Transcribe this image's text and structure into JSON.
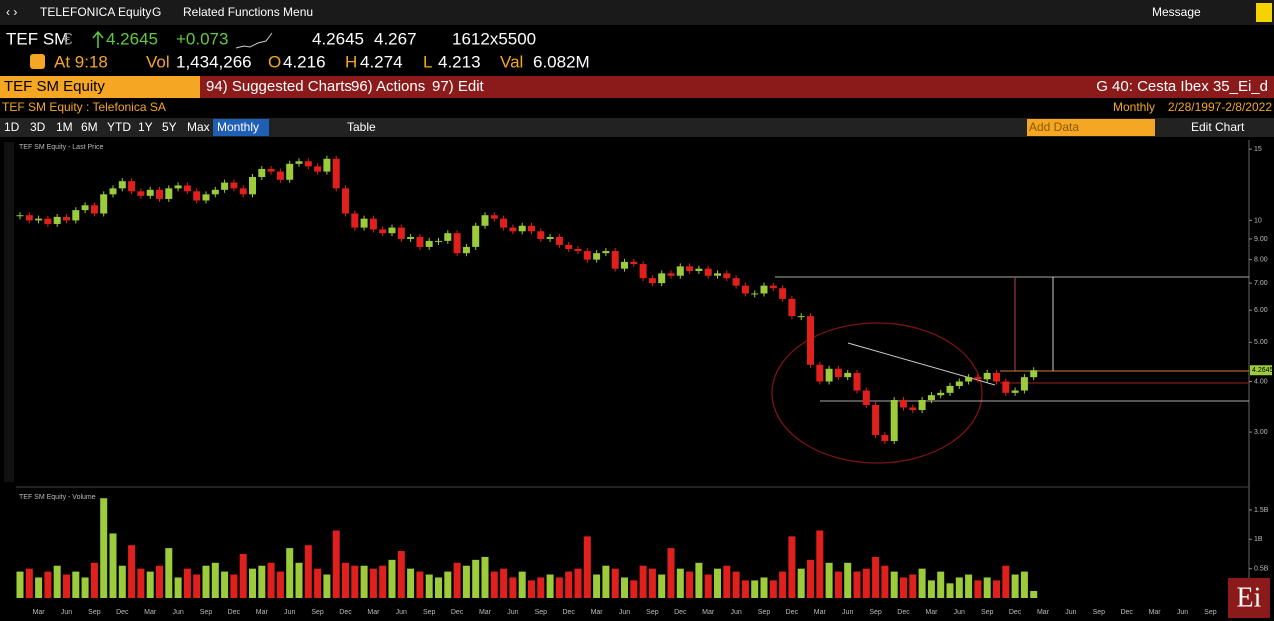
{
  "toolbar": {
    "security": "TELEFONICA Equity",
    "g": "G",
    "related": "Related Functions Menu",
    "message": "Message"
  },
  "quote": {
    "ticker": "TEF SM",
    "currency": "€",
    "last": "4.2645",
    "change": "+0.073",
    "bid": "4.2645",
    "ask": "4.267",
    "size": "1612x5500",
    "time": "At 9:18",
    "vol_label": "Vol",
    "vol": "1,434,266",
    "o_label": "O",
    "open": "4.216",
    "h_label": "H",
    "high": "4.274",
    "l_label": "L",
    "low": "4.213",
    "val_label": "Val",
    "val": "6.082M"
  },
  "menu": {
    "security": "TEF SM Equity",
    "suggested": "94) Suggested Charts",
    "actions": "96) Actions",
    "edit": "97) Edit",
    "launchpad": "G 40: Cesta Ibex 35_Ei_d"
  },
  "subheader": {
    "title": "TEF SM Equity : Telefonica SA",
    "period": "Monthly",
    "range": "2/28/1997-2/8/2022"
  },
  "controls": {
    "ranges": [
      "1D",
      "3D",
      "1M",
      "6M",
      "YTD",
      "1Y",
      "5Y",
      "Max"
    ],
    "frequency": "Monthly",
    "table": "Table",
    "add_data": "Add Data",
    "edit_chart": "Edit Chart"
  },
  "logo": "Ei",
  "chart_data": {
    "type": "candlestick",
    "log_scale": true,
    "last_label": "4.2645",
    "categories": [
      null,
      null,
      "Mar",
      null,
      null,
      "Jun",
      null,
      null,
      "Sep",
      null,
      null,
      "Dec",
      null,
      null,
      "Mar",
      null,
      null,
      "Jun",
      null,
      null,
      "Sep",
      null,
      null,
      "Dec",
      null,
      null,
      "Mar",
      null,
      null,
      "Jun",
      null,
      null,
      "Sep",
      null,
      null,
      "Dec",
      null,
      null,
      "Mar",
      null,
      null,
      "Jun",
      null,
      null,
      "Sep",
      null,
      null,
      "Dec",
      null,
      null,
      "Mar",
      null,
      null,
      "Jun",
      null,
      null,
      "Sep",
      null,
      null,
      "Dec",
      null,
      null,
      "Mar",
      null,
      null,
      "Jun",
      null,
      null,
      "Sep",
      null,
      null,
      "Dec",
      null,
      null,
      "Mar",
      null,
      null,
      "Jun",
      null,
      null,
      "Sep",
      null,
      null,
      "Dec",
      null,
      null,
      "Mar",
      null,
      null,
      "Jun",
      null,
      null,
      "Sep",
      null,
      null,
      "Dec",
      null,
      null,
      "Mar",
      null,
      null,
      "Jun",
      null,
      null,
      "Sep",
      null,
      null,
      "Dec",
      null,
      null,
      "Mar",
      null,
      null,
      "Jun",
      null,
      null,
      "Sep",
      null,
      null,
      "Dec",
      null,
      null,
      "Mar",
      null,
      null,
      "Jun",
      null,
      null,
      "Sep"
    ],
    "up_color": "#9ccc3c",
    "down_color": "#e0201c",
    "series": [
      {
        "name": "TEF SM Equity - Last Price",
        "values": [
          10.3,
          10.0,
          10.1,
          9.8,
          10.2,
          10.0,
          10.6,
          10.9,
          10.4,
          11.6,
          12.0,
          12.5,
          11.8,
          11.5,
          11.9,
          11.3,
          12.0,
          12.2,
          11.8,
          11.2,
          11.6,
          11.9,
          12.4,
          12.0,
          11.6,
          12.8,
          13.4,
          13.2,
          12.6,
          13.8,
          14.0,
          13.6,
          13.2,
          14.2,
          12.0,
          10.4,
          9.6,
          10.1,
          9.5,
          9.3,
          9.6,
          9.0,
          9.1,
          8.6,
          8.9,
          8.9,
          9.3,
          8.3,
          8.6,
          9.7,
          10.3,
          10.1,
          9.6,
          9.4,
          9.7,
          9.4,
          9.0,
          9.1,
          8.7,
          8.5,
          8.4,
          8.0,
          8.3,
          8.4,
          7.6,
          7.9,
          7.8,
          7.2,
          7.0,
          7.4,
          7.3,
          7.7,
          7.5,
          7.6,
          7.3,
          7.4,
          7.2,
          6.9,
          6.6,
          6.6,
          6.9,
          6.8,
          6.4,
          5.8,
          5.8,
          4.4,
          4.0,
          4.3,
          4.1,
          4.2,
          3.8,
          3.5,
          2.95,
          2.85,
          3.6,
          3.45,
          3.4,
          3.6,
          3.7,
          3.75,
          3.9,
          4.0,
          4.1,
          4.05,
          4.2,
          4.0,
          3.75,
          3.8,
          4.1,
          4.2645,
          null,
          null,
          null,
          null,
          null,
          null,
          null,
          null,
          null,
          null,
          null,
          null,
          null,
          null,
          null,
          null,
          null,
          null,
          null
        ]
      },
      {
        "name": "TEF SM Equity - Volume",
        "axis": "y2",
        "values": [
          0.45,
          0.5,
          0.35,
          0.45,
          0.55,
          0.4,
          0.45,
          0.35,
          0.6,
          1.7,
          1.1,
          0.55,
          0.9,
          0.5,
          0.45,
          0.55,
          0.85,
          0.35,
          0.5,
          0.4,
          0.55,
          0.6,
          0.45,
          0.4,
          0.75,
          0.5,
          0.55,
          0.6,
          0.45,
          0.85,
          0.6,
          0.9,
          0.5,
          0.4,
          1.15,
          0.6,
          0.55,
          0.55,
          0.5,
          0.55,
          0.65,
          0.8,
          0.5,
          0.45,
          0.4,
          0.35,
          0.45,
          0.6,
          0.55,
          0.65,
          0.7,
          0.45,
          0.5,
          0.35,
          0.45,
          0.3,
          0.35,
          0.4,
          0.35,
          0.45,
          0.5,
          1.05,
          0.4,
          0.55,
          0.5,
          0.35,
          0.3,
          0.55,
          0.5,
          0.4,
          0.85,
          0.5,
          0.45,
          0.6,
          0.4,
          0.5,
          0.55,
          0.45,
          0.3,
          0.3,
          0.35,
          0.3,
          0.45,
          1.05,
          0.5,
          0.65,
          1.15,
          0.6,
          0.45,
          0.6,
          0.45,
          0.5,
          0.7,
          0.55,
          0.45,
          0.35,
          0.4,
          0.5,
          0.3,
          0.45,
          0.25,
          0.35,
          0.4,
          0.3,
          0.35,
          0.3,
          0.55,
          0.4,
          0.45,
          0.12,
          null,
          null,
          null,
          null,
          null,
          null,
          null,
          null,
          null,
          null,
          null,
          null,
          null,
          null,
          null,
          null,
          null,
          null,
          null
        ]
      }
    ],
    "ylim": [
      2.22,
      15.8
    ],
    "yticks": [
      {
        "value": 3,
        "label": "3.00"
      },
      {
        "value": 4,
        "label": "4.00"
      },
      {
        "value": 5,
        "label": "5.00"
      },
      {
        "value": 6,
        "label": "6.00"
      },
      {
        "value": 7,
        "label": "7.00"
      },
      {
        "value": 8,
        "label": "8.00"
      },
      {
        "value": 9,
        "label": "9.00"
      },
      10,
      15
    ],
    "y2lim": [
      0,
      1.84
    ],
    "y2ticks": [
      {
        "value": 0.5,
        "label": "0.5B"
      },
      {
        "value": 1,
        "label": "1B"
      },
      {
        "value": 1.5,
        "label": "1.5B"
      }
    ]
  }
}
